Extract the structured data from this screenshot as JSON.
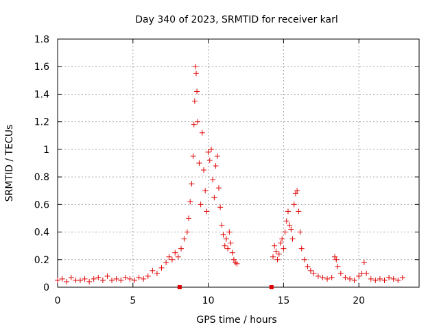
{
  "chart_data": {
    "type": "scatter",
    "title": "Day 340 of 2023, SRMTID for receiver karl",
    "xlabel": "GPS time / hours",
    "ylabel": "SRMTID / TECUs",
    "xlim": [
      0,
      24
    ],
    "ylim": [
      0,
      1.8
    ],
    "xticks": [
      0,
      5,
      10,
      15,
      20
    ],
    "xtick_labels": [
      "0",
      "5",
      "10",
      "15",
      "20"
    ],
    "yticks": [
      0,
      0.2,
      0.4,
      0.6,
      0.8,
      1.0,
      1.2,
      1.4,
      1.6,
      1.8
    ],
    "ytick_labels": [
      "0",
      "0.2",
      "0.4",
      "0.6",
      "0.8",
      "1",
      "1.2",
      "1.4",
      "1.6",
      "1.8"
    ],
    "grid": true,
    "marker": "+",
    "color": "#e00000",
    "series": [
      {
        "name": "SRMTID",
        "x": [
          0.0,
          0.3,
          0.6,
          0.9,
          1.2,
          1.5,
          1.8,
          2.1,
          2.4,
          2.7,
          3.0,
          3.3,
          3.6,
          3.9,
          4.2,
          4.5,
          4.8,
          5.1,
          5.4,
          5.7,
          6.0,
          6.3,
          6.6,
          6.9,
          7.2,
          7.4,
          7.6,
          7.8,
          8.0,
          8.2,
          8.4,
          8.6,
          8.7,
          8.8,
          8.9,
          9.0,
          9.05,
          9.1,
          9.15,
          9.2,
          9.25,
          9.3,
          9.4,
          9.5,
          9.6,
          9.7,
          9.8,
          9.9,
          10.0,
          10.1,
          10.2,
          10.3,
          10.4,
          10.5,
          10.6,
          10.7,
          10.8,
          10.9,
          11.0,
          11.1,
          11.2,
          11.3,
          11.4,
          11.5,
          11.6,
          11.7,
          11.8,
          11.9,
          14.3,
          14.4,
          14.5,
          14.6,
          14.7,
          14.8,
          14.9,
          15.0,
          15.1,
          15.2,
          15.3,
          15.4,
          15.5,
          15.6,
          15.7,
          15.8,
          15.9,
          16.0,
          16.1,
          16.2,
          16.4,
          16.6,
          16.8,
          17.0,
          17.3,
          17.6,
          17.9,
          18.2,
          18.4,
          18.5,
          18.6,
          18.8,
          19.1,
          19.4,
          19.7,
          20.0,
          20.2,
          20.35,
          20.5,
          20.8,
          21.1,
          21.4,
          21.7,
          22.0,
          22.3,
          22.6,
          22.9
        ],
        "y": [
          0.05,
          0.06,
          0.04,
          0.07,
          0.05,
          0.05,
          0.06,
          0.04,
          0.06,
          0.07,
          0.05,
          0.08,
          0.05,
          0.06,
          0.05,
          0.07,
          0.06,
          0.05,
          0.07,
          0.06,
          0.08,
          0.12,
          0.1,
          0.14,
          0.18,
          0.22,
          0.2,
          0.25,
          0.22,
          0.28,
          0.35,
          0.4,
          0.5,
          0.62,
          0.75,
          0.95,
          1.18,
          1.35,
          1.6,
          1.55,
          1.42,
          1.2,
          0.9,
          0.6,
          1.12,
          0.85,
          0.7,
          0.55,
          0.98,
          0.92,
          1.0,
          0.78,
          0.65,
          0.88,
          0.95,
          0.72,
          0.58,
          0.45,
          0.38,
          0.3,
          0.35,
          0.28,
          0.4,
          0.32,
          0.25,
          0.2,
          0.18,
          0.17,
          0.22,
          0.3,
          0.26,
          0.2,
          0.24,
          0.32,
          0.35,
          0.28,
          0.4,
          0.48,
          0.55,
          0.45,
          0.42,
          0.35,
          0.6,
          0.68,
          0.7,
          0.55,
          0.4,
          0.28,
          0.2,
          0.15,
          0.12,
          0.1,
          0.08,
          0.07,
          0.06,
          0.07,
          0.22,
          0.2,
          0.15,
          0.1,
          0.07,
          0.06,
          0.05,
          0.08,
          0.1,
          0.18,
          0.1,
          0.06,
          0.05,
          0.06,
          0.05,
          0.07,
          0.06,
          0.05,
          0.07
        ]
      }
    ],
    "gap_markers_x": [
      8.1,
      14.2
    ]
  }
}
